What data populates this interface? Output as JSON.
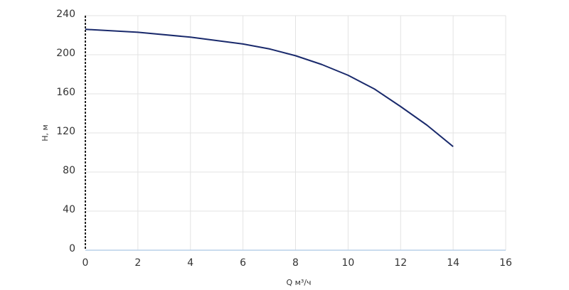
{
  "chart_data": {
    "type": "line",
    "x_label": "Q м³/ч",
    "y_label": "H, м",
    "x": [
      0,
      2,
      4,
      6,
      7,
      8,
      9,
      10,
      11,
      12,
      13,
      14
    ],
    "series": [
      {
        "color": "#1a2a6c",
        "values": [
          226,
          223,
          218,
          211,
          206,
          199,
          190,
          179,
          165,
          147,
          128,
          106
        ]
      }
    ],
    "xlim": [
      0,
      16
    ],
    "xticks": [
      0,
      2,
      4,
      6,
      8,
      10,
      12,
      14,
      16
    ],
    "ylim": [
      0,
      240
    ],
    "yticks": [
      0,
      40,
      80,
      120,
      160,
      200,
      240
    ],
    "grid": true
  }
}
